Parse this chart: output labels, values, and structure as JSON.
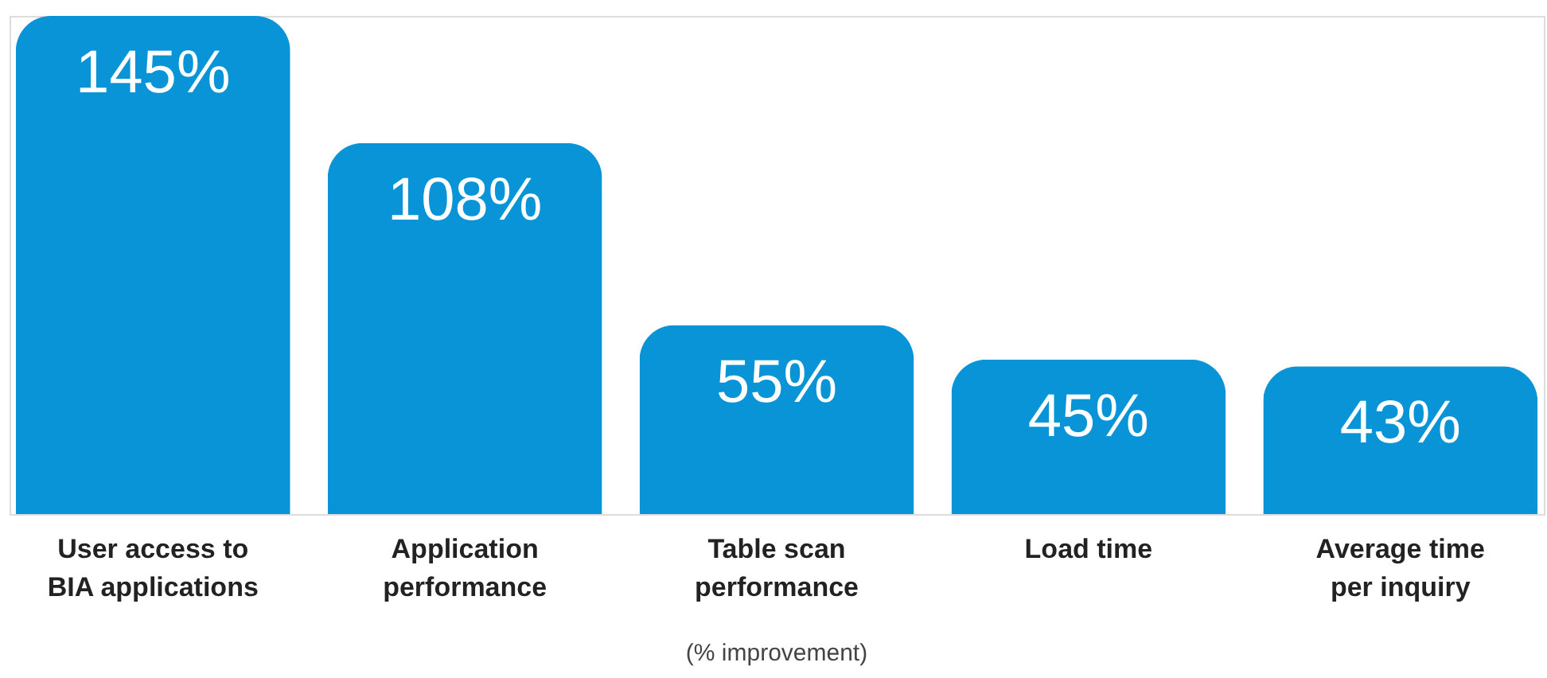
{
  "chart_data": {
    "type": "bar",
    "categories": [
      "User access to\nBIA applications",
      "Application\nperformance",
      "Table scan\nperformance",
      "Load time",
      "Average time\nper inquiry"
    ],
    "values": [
      145,
      108,
      55,
      45,
      43
    ],
    "value_labels": [
      "145%",
      "108%",
      "55%",
      "45%",
      "43%"
    ],
    "color": "#0894d6",
    "annotations": [
      "(% improvement)"
    ]
  }
}
